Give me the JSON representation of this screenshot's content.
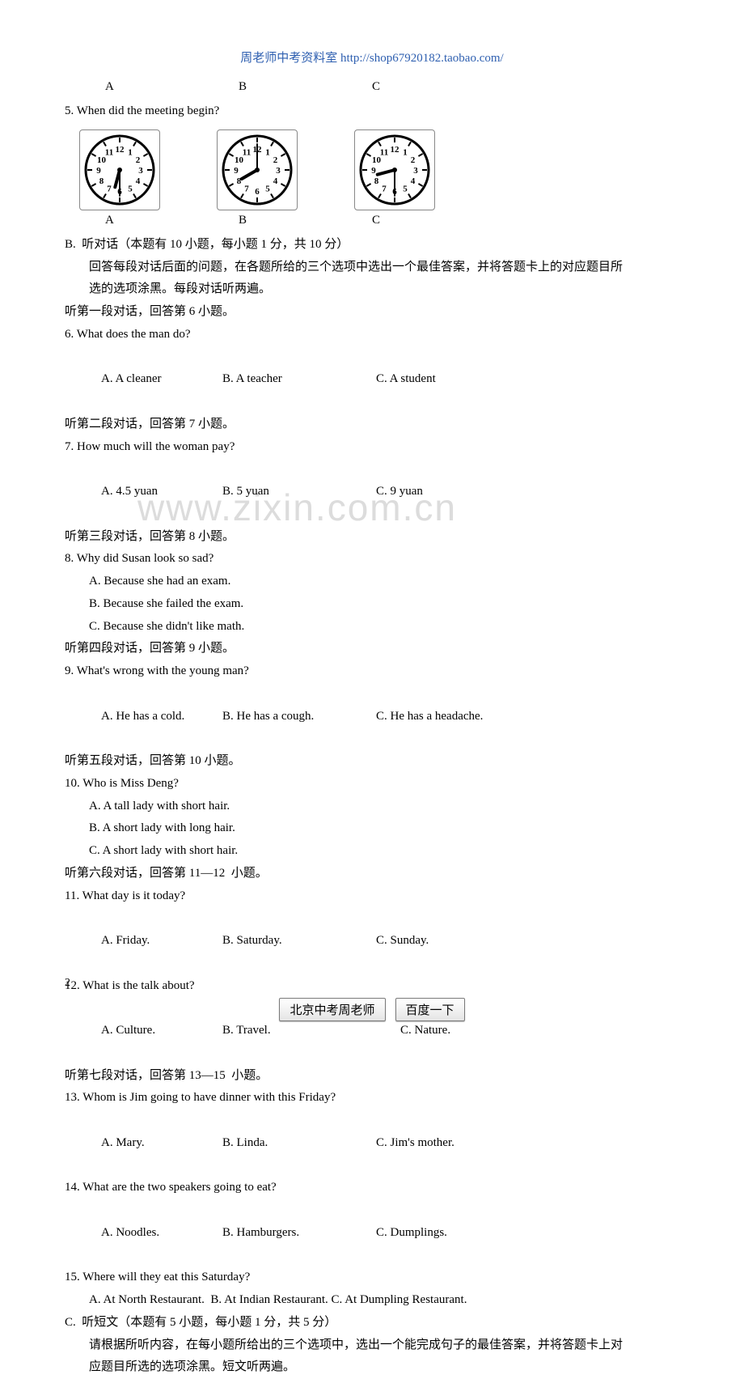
{
  "header_link": "周老师中考资料室 http://shop67920182.taobao.com/",
  "watermark": "www.zixin.com.cn",
  "abc_top": {
    "a": "A",
    "b": "B",
    "c": "C"
  },
  "q5": {
    "text": "5. When did the meeting begin?",
    "clocks": [
      {
        "hour": 6,
        "min": 30
      },
      {
        "hour": 8,
        "min": 0
      },
      {
        "hour": 8,
        "min": 30
      }
    ],
    "labels": {
      "a": "A",
      "b": "B",
      "c": "C"
    }
  },
  "sectionB": {
    "title": "B.  听对话（本题有 10 小题，每小题 1 分，共 10 分）",
    "desc1": "回答每段对话后面的问题，在各题所给的三个选项中选出一个最佳答案，并将答题卡上的对应题目所",
    "desc2": "选的选项涂黑。每段对话听两遍。"
  },
  "seg1": "听第一段对话，回答第 6 小题。",
  "q6": {
    "text": "6. What does the man do?",
    "a": "A. A cleaner",
    "b": "B. A teacher",
    "c": "C. A student"
  },
  "seg2": "听第二段对话，回答第 7 小题。",
  "q7": {
    "text": "7. How much will the woman pay?",
    "a": "A. 4.5 yuan",
    "b": "B. 5 yuan",
    "c": "C. 9 yuan"
  },
  "seg3": "听第三段对话，回答第 8 小题。",
  "q8": {
    "text": "8. Why did Susan look so sad?",
    "a": "A. Because she had an exam.",
    "b": "B. Because she failed the exam.",
    "c": "C. Because she didn't like math."
  },
  "seg4": "听第四段对话，回答第 9 小题。",
  "q9": {
    "text": "9. What's wrong with the young man?",
    "a": "A. He has a cold.",
    "b": "B. He has a cough.",
    "c": "C. He has a headache."
  },
  "seg5": "听第五段对话，回答第 10 小题。",
  "q10": {
    "text": "10. Who is Miss Deng?",
    "a": "A. A tall lady with short hair.",
    "b": "B. A short lady with long hair.",
    "c": "C. A short lady with short hair."
  },
  "seg6": "听第六段对话，回答第 11—12  小题。",
  "q11": {
    "text": "11. What day is it today?",
    "a": "A. Friday.",
    "b": "B. Saturday.",
    "c": "C. Sunday."
  },
  "q12": {
    "text": "12. What is the talk about?",
    "a": "A. Culture.",
    "b": "B. Travel.",
    "c": "C. Nature."
  },
  "seg7": "听第七段对话，回答第 13—15  小题。",
  "q13": {
    "text": "13. Whom is Jim going to have dinner with this Friday?",
    "a": "A. Mary.",
    "b": "B. Linda.",
    "c": "C. Jim's mother."
  },
  "q14": {
    "text": "14. What are the two speakers going to eat?",
    "a": "A. Noodles.",
    "b": "B. Hamburgers.",
    "c": "C. Dumplings."
  },
  "q15": {
    "text": "15. Where will they eat this Saturday?",
    "a": "A. At North Restaurant.  B. At Indian Restaurant. C. At Dumpling Restaurant."
  },
  "sectionC": {
    "title": "C.  听短文（本题有 5 小题，每小题 1 分，共 5 分）",
    "desc1": "请根据所听内容，在每小题所给出的三个选项中，选出一个能完成句子的最佳答案，并将答题卡上对",
    "desc2": "应题目所选的选项涂黑。短文听两遍。"
  },
  "page_num": "2",
  "footer_btn1": "北京中考周老师",
  "footer_btn2": "百度一下",
  "opt_widths": {
    "a": 150,
    "b": 190,
    "c": 180
  },
  "clock_style": {
    "face_stroke": "#000",
    "face_stroke_width": 3,
    "tick_stroke": "#000",
    "num_color": "#000",
    "hour_hand_width": 4,
    "min_hand_width": 2
  }
}
